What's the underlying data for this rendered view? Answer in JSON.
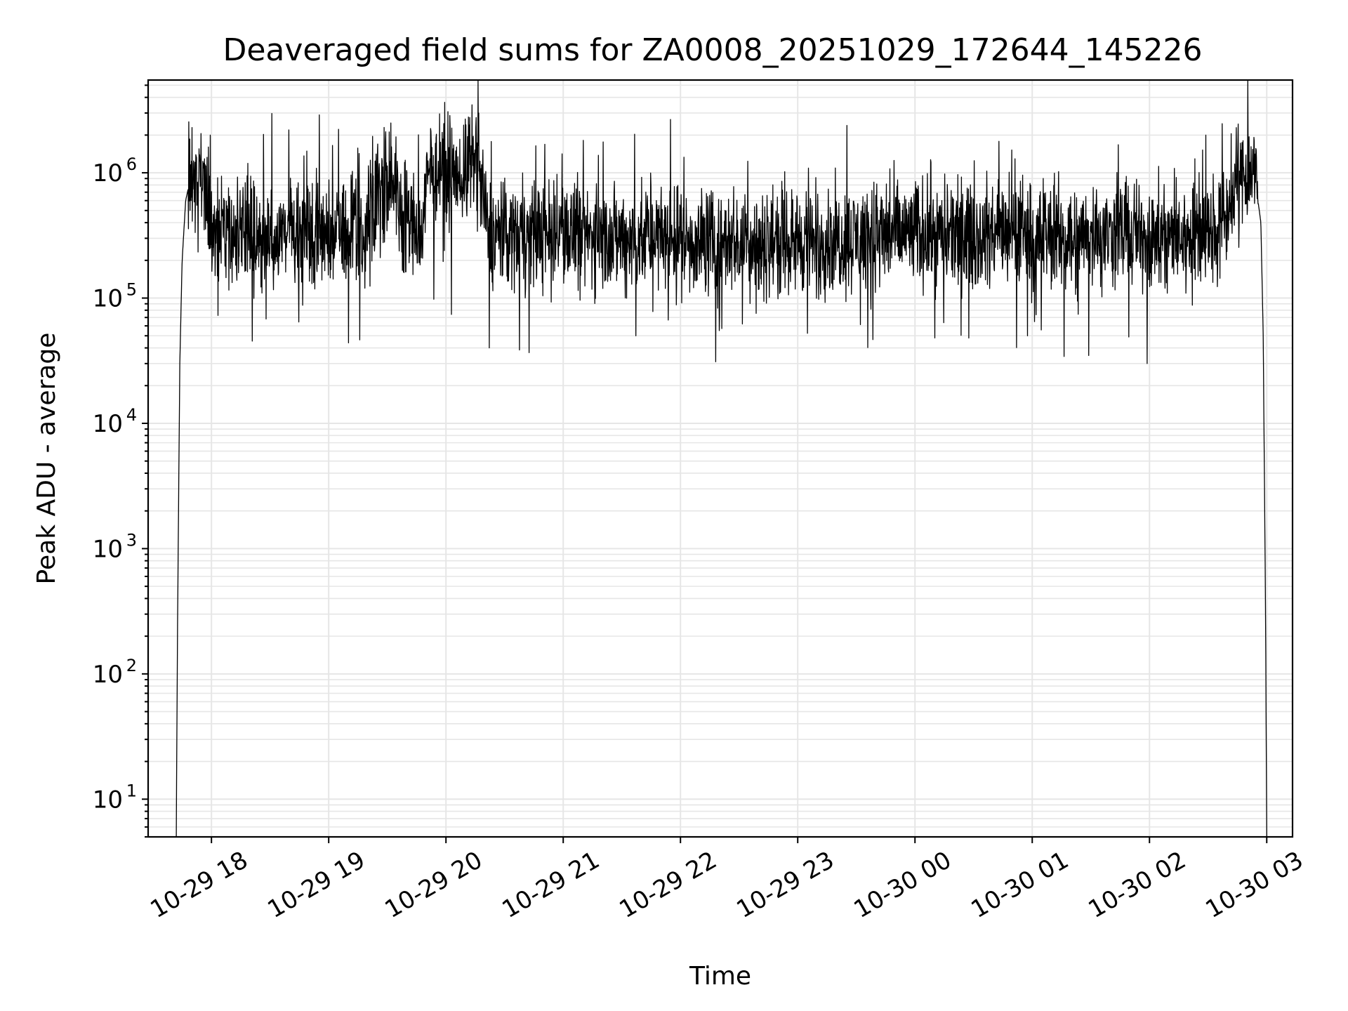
{
  "chart_data": {
    "type": "line",
    "title": "Deaveraged field sums for ZA0008_20251029_172644_145226",
    "xlabel": "Time",
    "ylabel": "Peak ADU - average",
    "yscale": "log",
    "ylim": [
      5,
      5500000
    ],
    "xlim_hours_from_2025_10_29_00_00": [
      17.46,
      27.22
    ],
    "grid": true,
    "x_ticks": [
      {
        "hour": 18,
        "label": "10-29 18"
      },
      {
        "hour": 19,
        "label": "10-29 19"
      },
      {
        "hour": 20,
        "label": "10-29 20"
      },
      {
        "hour": 21,
        "label": "10-29 21"
      },
      {
        "hour": 22,
        "label": "10-29 22"
      },
      {
        "hour": 23,
        "label": "10-29 23"
      },
      {
        "hour": 24,
        "label": "10-30 00"
      },
      {
        "hour": 25,
        "label": "10-30 01"
      },
      {
        "hour": 26,
        "label": "10-30 02"
      },
      {
        "hour": 27,
        "label": "10-30 03"
      }
    ],
    "y_ticks": [
      {
        "value": 10,
        "base": "10",
        "exp": "1"
      },
      {
        "value": 100,
        "base": "10",
        "exp": "2"
      },
      {
        "value": 1000,
        "base": "10",
        "exp": "3"
      },
      {
        "value": 10000,
        "base": "10",
        "exp": "4"
      },
      {
        "value": 100000,
        "base": "10",
        "exp": "5"
      },
      {
        "value": 1000000,
        "base": "10",
        "exp": "6"
      }
    ],
    "series": [
      {
        "name": "deaveraged field sums",
        "color": "#000000",
        "x_hours": [
          17.7,
          17.71,
          17.73,
          17.75,
          17.78,
          17.82,
          17.88,
          17.95,
          18.0,
          18.2,
          18.5,
          18.8,
          19.0,
          19.3,
          19.4,
          19.5,
          19.65,
          19.8,
          19.85,
          20.0,
          20.15,
          20.25,
          20.3,
          20.35,
          20.45,
          20.7,
          21.0,
          21.5,
          22.0,
          22.5,
          23.0,
          23.5,
          24.0,
          24.5,
          25.0,
          25.5,
          26.0,
          26.3,
          26.5,
          26.6,
          26.7,
          26.8,
          26.85,
          26.9,
          26.95,
          26.97,
          26.99,
          27.0
        ],
        "y_values": [
          5,
          200,
          30000,
          200000,
          600000,
          900000,
          1000000,
          800000,
          350000,
          320000,
          300000,
          330000,
          320000,
          330000,
          700000,
          900000,
          450000,
          320000,
          1000000,
          1000000,
          1100000,
          1200000,
          800000,
          350000,
          320000,
          330000,
          320000,
          300000,
          300000,
          280000,
          290000,
          300000,
          330000,
          310000,
          320000,
          310000,
          320000,
          300000,
          320000,
          350000,
          600000,
          1000000,
          1100000,
          900000,
          400000,
          50000,
          300,
          5
        ],
        "notable_spikes": [
          {
            "x_hour": 17.99,
            "y": 2000000
          },
          {
            "x_hour": 18.66,
            "y": 2200000
          },
          {
            "x_hour": 18.92,
            "y": 2900000
          },
          {
            "x_hour": 19.53,
            "y": 2500000
          },
          {
            "x_hour": 20.28,
            "y": 3000000
          },
          {
            "x_hour": 20.37,
            "y": 40000
          },
          {
            "x_hour": 21.62,
            "y": 50000
          },
          {
            "x_hour": 22.33,
            "y": 55000
          },
          {
            "x_hour": 24.17,
            "y": 48000
          },
          {
            "x_hour": 24.96,
            "y": 50000
          },
          {
            "x_hour": 25.98,
            "y": 30000
          },
          {
            "x_hour": 26.48,
            "y": 2000000
          }
        ]
      }
    ]
  }
}
